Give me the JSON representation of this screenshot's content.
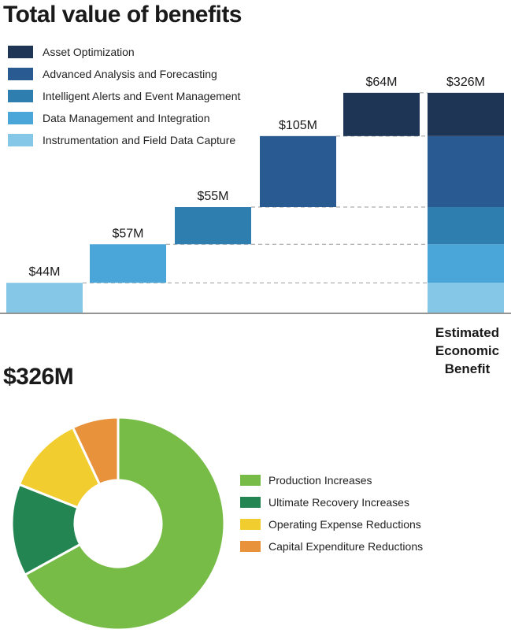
{
  "title": "Total value of benefits",
  "total_heading": "$326M",
  "colors": {
    "asset": "#1e3556",
    "analysis": "#2a5a92",
    "alerts": "#2e7eb0",
    "data_mgmt": "#4aa6d8",
    "instrumentation": "#84c7e6",
    "production": "#78bc48",
    "recovery": "#228552",
    "opex": "#f2cd30",
    "capex": "#e8923c"
  },
  "chart_data": [
    {
      "type": "bar",
      "subtype": "waterfall",
      "legend": [
        {
          "label": "Asset Optimization",
          "color": "#1e3556"
        },
        {
          "label": "Advanced Analysis and Forecasting",
          "color": "#2a5a92"
        },
        {
          "label": "Intelligent Alerts and Event Management",
          "color": "#2e7eb0"
        },
        {
          "label": "Data Management and Integration",
          "color": "#4aa6d8"
        },
        {
          "label": "Instrumentation and Field Data Capture",
          "color": "#84c7e6"
        }
      ],
      "steps": [
        {
          "value": 44,
          "label": "$44M",
          "color": "#84c7e6"
        },
        {
          "value": 57,
          "label": "$57M",
          "color": "#4aa6d8"
        },
        {
          "value": 55,
          "label": "$55M",
          "color": "#2e7eb0"
        },
        {
          "value": 105,
          "label": "$105M",
          "color": "#2a5a92"
        },
        {
          "value": 64,
          "label": "$64M",
          "color": "#1e3556"
        }
      ],
      "total": {
        "value": 326,
        "label": "$326M",
        "category_label": [
          "Estimated",
          "Economic",
          "Benefit"
        ]
      },
      "ylim": [
        0,
        326
      ],
      "legend_position": "top-left"
    },
    {
      "type": "pie",
      "subtype": "donut",
      "slices": [
        {
          "label": "Production Increases",
          "value": 67,
          "color": "#78bc48"
        },
        {
          "label": "Ultimate Recovery Increases",
          "value": 14,
          "color": "#228552"
        },
        {
          "label": "Operating Expense Reductions",
          "value": 12,
          "color": "#f2cd30"
        },
        {
          "label": "Capital Expenditure Reductions",
          "value": 7,
          "color": "#e8923c"
        }
      ],
      "legend_position": "right"
    }
  ]
}
